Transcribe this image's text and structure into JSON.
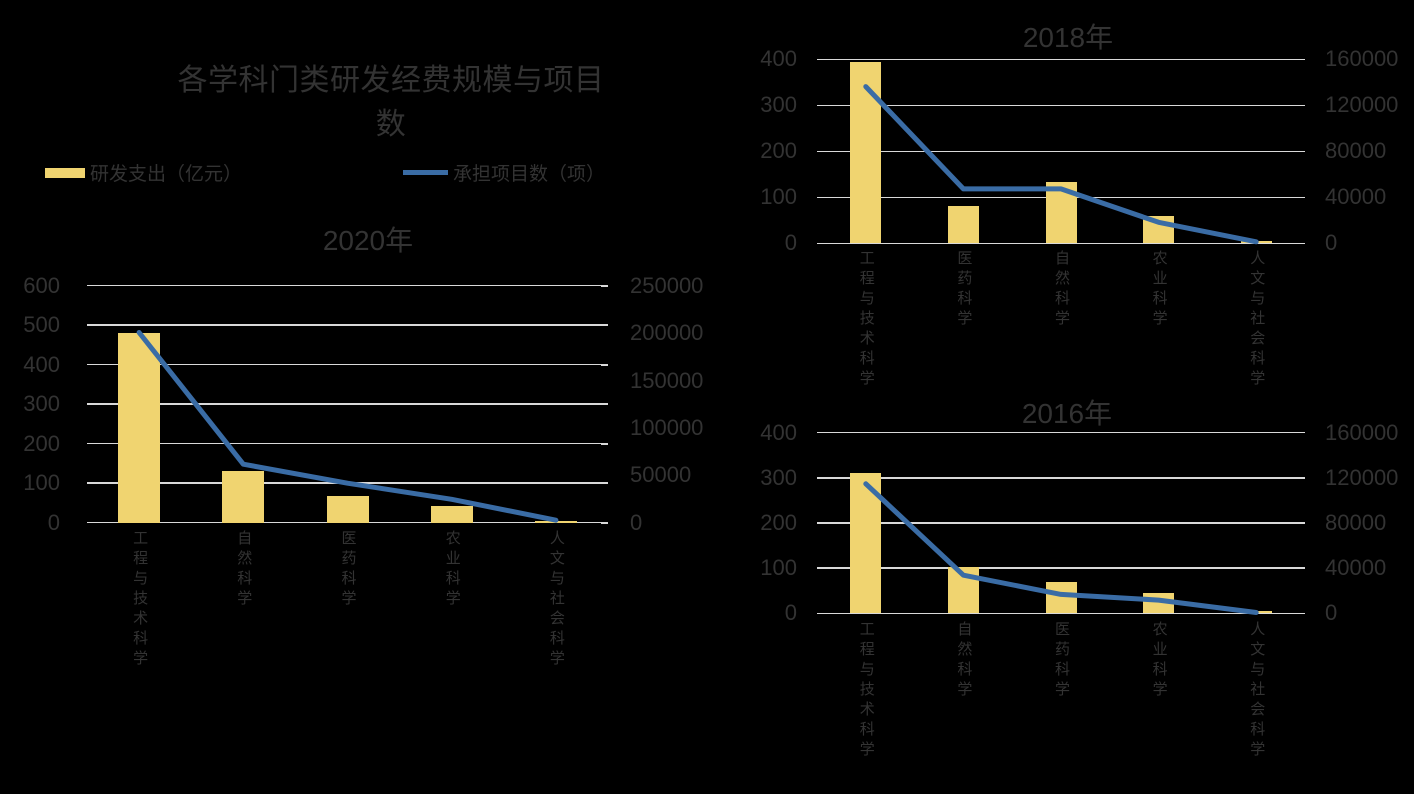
{
  "title": "各学科门类研发经费规模与项目数",
  "legend": [
    {
      "label": "研发支出（亿元）",
      "series_type": "bar",
      "color": "#F0D470"
    },
    {
      "label": "承担项目数（项）",
      "series_type": "line",
      "color": "#3A6CA5"
    }
  ],
  "colors": {
    "background": "#000000",
    "bar": "#F0D470",
    "line": "#3A6CA5",
    "gridline": "#D9D9D9",
    "text": "#333333"
  },
  "chart_data": [
    {
      "type": "bar+line",
      "title": "2020年",
      "categories": [
        "工程与技术科学",
        "自然科学",
        "医药科学",
        "农业科学",
        "人文与社会科学"
      ],
      "series": [
        {
          "name": "研发支出（亿元）",
          "type": "bar",
          "axis": "left",
          "values": [
            480,
            130,
            68,
            43,
            4
          ]
        },
        {
          "name": "承担项目数（项）",
          "type": "line",
          "axis": "right",
          "values": [
            201000,
            62000,
            42000,
            25000,
            3000
          ]
        }
      ],
      "left_axis": {
        "ticks": [
          600,
          500,
          400,
          300,
          200,
          100,
          0
        ],
        "min": 0,
        "max": 600
      },
      "right_axis": {
        "ticks": [
          250000,
          200000,
          150000,
          100000,
          50000,
          0
        ],
        "min": 0,
        "max": 250000
      },
      "grid": true,
      "legend_position": "top"
    },
    {
      "type": "bar+line",
      "title": "2018年",
      "categories": [
        "工程与技术科学",
        "医药科学",
        "自然科学",
        "农业科学",
        "人文与社会科学"
      ],
      "series": [
        {
          "name": "研发支出（亿元）",
          "type": "bar",
          "axis": "left",
          "values": [
            394,
            82,
            133,
            60,
            6
          ]
        },
        {
          "name": "承担项目数（项）",
          "type": "line",
          "axis": "right",
          "values": [
            136000,
            47000,
            47000,
            18000,
            1000
          ]
        }
      ],
      "left_axis": {
        "ticks": [
          400,
          300,
          200,
          100,
          0
        ],
        "min": 0,
        "max": 400
      },
      "right_axis": {
        "ticks": [
          160000,
          120000,
          80000,
          40000,
          0
        ],
        "min": 0,
        "max": 160000
      },
      "grid": true,
      "legend_position": "top"
    },
    {
      "type": "bar+line",
      "title": "2016年",
      "categories": [
        "工程与技术科学",
        "自然科学",
        "医药科学",
        "农业科学",
        "人文与社会科学"
      ],
      "series": [
        {
          "name": "研发支出（亿元）",
          "type": "bar",
          "axis": "left",
          "values": [
            310,
            102,
            70,
            46,
            4
          ]
        },
        {
          "name": "承担项目数（项）",
          "type": "line",
          "axis": "right",
          "values": [
            115000,
            34000,
            17000,
            12000,
            1000
          ]
        }
      ],
      "left_axis": {
        "ticks": [
          400,
          300,
          200,
          100,
          0
        ],
        "min": 0,
        "max": 400
      },
      "right_axis": {
        "ticks": [
          160000,
          120000,
          80000,
          40000,
          0
        ],
        "min": 0,
        "max": 160000
      },
      "grid": true,
      "legend_position": "top"
    }
  ]
}
